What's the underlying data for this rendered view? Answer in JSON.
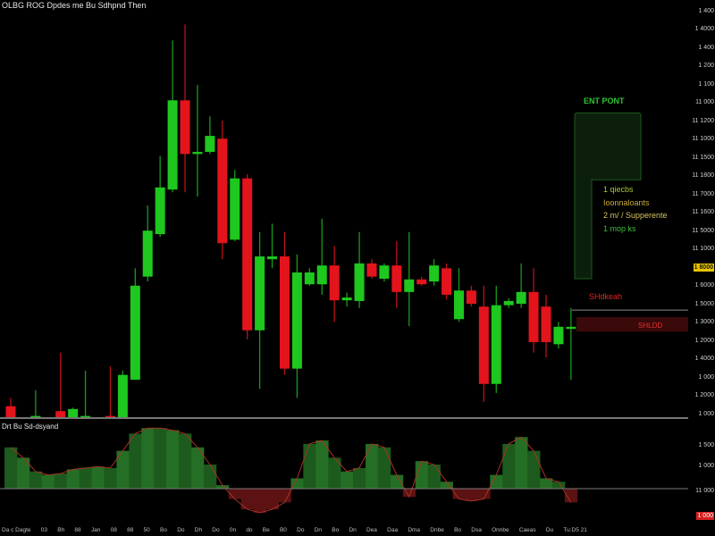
{
  "colors": {
    "up": "#1ec81e",
    "down": "#e3141c",
    "up_wick": "#1a9a1a",
    "down_wick": "#b81218",
    "ind_up": "#1d5a1d",
    "ind_up_alt": "#256e25",
    "ind_down": "#5c1212",
    "ind_line": "#a83224",
    "zone_fill": "#0c1f0c",
    "zone_stroke": "#1d5a1d",
    "stop_line": "#8a8a8a",
    "sell_zone_fill": "#3a0909",
    "tag_yellow": "#e8c400",
    "tag_red": "#d8201e"
  },
  "annotations": {
    "entry_label": "ENT PONT",
    "notes": [
      "1 qiecbs",
      "Ioonnaloants",
      "2 m/ / Supperente",
      "1 mop ks"
    ],
    "stop_label": "SHdkeah",
    "sell_label": "SHLDD"
  },
  "chart_data": {
    "type": "candlestick",
    "title": "OLBG ROG Dpdes me Bu Sdhpnd Then",
    "ylim": [
      1.0,
      1.6
    ],
    "candles": [
      {
        "x": 0,
        "open": 1.017,
        "high": 1.029,
        "low": 1.0,
        "close": 1.0
      },
      {
        "x": 2,
        "open": 1.0,
        "high": 1.04,
        "low": 1.0,
        "close": 1.003
      },
      {
        "x": 4,
        "open": 1.01,
        "high": 1.094,
        "low": 1.0,
        "close": 1.0
      },
      {
        "x": 5,
        "open": 1.0,
        "high": 1.015,
        "low": 1.0,
        "close": 1.013
      },
      {
        "x": 6,
        "open": 1.0,
        "high": 1.068,
        "low": 1.0,
        "close": 1.003
      },
      {
        "x": 8,
        "open": 1.003,
        "high": 1.074,
        "low": 1.0,
        "close": 1.0
      },
      {
        "x": 9,
        "open": 1.0,
        "high": 1.068,
        "low": 1.0,
        "close": 1.062
      },
      {
        "x": 10,
        "open": 1.055,
        "high": 1.215,
        "low": 1.055,
        "close": 1.19
      },
      {
        "x": 11,
        "open": 1.203,
        "high": 1.305,
        "low": 1.196,
        "close": 1.269
      },
      {
        "x": 12,
        "open": 1.264,
        "high": 1.376,
        "low": 1.26,
        "close": 1.331
      },
      {
        "x": 13,
        "open": 1.328,
        "high": 1.542,
        "low": 1.324,
        "close": 1.456
      },
      {
        "x": 14,
        "open": 1.456,
        "high": 1.565,
        "low": 1.324,
        "close": 1.379
      },
      {
        "x": 15,
        "open": 1.379,
        "high": 1.478,
        "low": 1.318,
        "close": 1.382
      },
      {
        "x": 16,
        "open": 1.382,
        "high": 1.433,
        "low": 1.379,
        "close": 1.405
      },
      {
        "x": 17,
        "open": 1.401,
        "high": 1.427,
        "low": 1.228,
        "close": 1.251
      },
      {
        "x": 18,
        "open": 1.256,
        "high": 1.356,
        "low": 1.254,
        "close": 1.344
      },
      {
        "x": 19,
        "open": 1.344,
        "high": 1.35,
        "low": 1.113,
        "close": 1.126
      },
      {
        "x": 20,
        "open": 1.126,
        "high": 1.267,
        "low": 1.042,
        "close": 1.232
      },
      {
        "x": 21,
        "open": 1.228,
        "high": 1.279,
        "low": 1.215,
        "close": 1.232
      },
      {
        "x": 22,
        "open": 1.232,
        "high": 1.267,
        "low": 1.062,
        "close": 1.071
      },
      {
        "x": 23,
        "open": 1.071,
        "high": 1.235,
        "low": 1.029,
        "close": 1.209
      },
      {
        "x": 24,
        "open": 1.192,
        "high": 1.215,
        "low": 1.19,
        "close": 1.209
      },
      {
        "x": 25,
        "open": 1.192,
        "high": 1.286,
        "low": 1.177,
        "close": 1.219
      },
      {
        "x": 26,
        "open": 1.219,
        "high": 1.247,
        "low": 1.138,
        "close": 1.169
      },
      {
        "x": 27,
        "open": 1.169,
        "high": 1.18,
        "low": 1.16,
        "close": 1.173
      },
      {
        "x": 28,
        "open": 1.168,
        "high": 1.267,
        "low": 1.158,
        "close": 1.222
      },
      {
        "x": 29,
        "open": 1.222,
        "high": 1.228,
        "low": 1.2,
        "close": 1.203
      },
      {
        "x": 30,
        "open": 1.2,
        "high": 1.222,
        "low": 1.196,
        "close": 1.219
      },
      {
        "x": 31,
        "open": 1.219,
        "high": 1.254,
        "low": 1.158,
        "close": 1.181
      },
      {
        "x": 32,
        "open": 1.181,
        "high": 1.267,
        "low": 1.132,
        "close": 1.199
      },
      {
        "x": 33,
        "open": 1.199,
        "high": 1.203,
        "low": 1.19,
        "close": 1.192
      },
      {
        "x": 34,
        "open": 1.196,
        "high": 1.228,
        "low": 1.19,
        "close": 1.219
      },
      {
        "x": 35,
        "open": 1.215,
        "high": 1.222,
        "low": 1.17,
        "close": 1.177
      },
      {
        "x": 36,
        "open": 1.142,
        "high": 1.215,
        "low": 1.138,
        "close": 1.183
      },
      {
        "x": 37,
        "open": 1.183,
        "high": 1.19,
        "low": 1.16,
        "close": 1.164
      },
      {
        "x": 38,
        "open": 1.16,
        "high": 1.19,
        "low": 1.023,
        "close": 1.049
      },
      {
        "x": 39,
        "open": 1.049,
        "high": 1.19,
        "low": 1.036,
        "close": 1.162
      },
      {
        "x": 40,
        "open": 1.162,
        "high": 1.172,
        "low": 1.158,
        "close": 1.168
      },
      {
        "x": 41,
        "open": 1.164,
        "high": 1.222,
        "low": 1.158,
        "close": 1.181
      },
      {
        "x": 42,
        "open": 1.181,
        "high": 1.215,
        "low": 1.094,
        "close": 1.109
      },
      {
        "x": 43,
        "open": 1.16,
        "high": 1.177,
        "low": 1.087,
        "close": 1.109
      },
      {
        "x": 44,
        "open": 1.106,
        "high": 1.138,
        "low": 1.1,
        "close": 1.131
      },
      {
        "x": 45,
        "open": 1.128,
        "high": 1.158,
        "low": 1.055,
        "close": 1.131
      }
    ],
    "levels": {
      "entry_zone": {
        "top": 1.438,
        "step": 1.342,
        "bottom": 1.2
      },
      "stop_level": 1.155,
      "sell_zone": {
        "top": 1.145,
        "bottom": 1.124
      }
    },
    "y_tick_labels": [
      {
        "text": "1 400",
        "style": "plain"
      },
      {
        "text": "1 4000",
        "style": "plain"
      },
      {
        "text": "1 400",
        "style": "plain"
      },
      {
        "text": "1 200",
        "style": "plain"
      },
      {
        "text": "1 100",
        "style": "plain"
      },
      {
        "text": "11 000",
        "style": "plain"
      },
      {
        "text": "11 1200",
        "style": "plain"
      },
      {
        "text": "11 1000",
        "style": "plain"
      },
      {
        "text": "11 1500",
        "style": "plain"
      },
      {
        "text": "11 1800",
        "style": "plain"
      },
      {
        "text": "11 7000",
        "style": "plain"
      },
      {
        "text": "11 1600",
        "style": "plain"
      },
      {
        "text": "11 5000",
        "style": "plain"
      },
      {
        "text": "11 1000",
        "style": "plain"
      },
      {
        "text": "1 8000",
        "style": "current-price"
      },
      {
        "text": "1 6000",
        "style": "plain"
      },
      {
        "text": "1 5000",
        "style": "plain"
      },
      {
        "text": "1 3000",
        "style": "plain"
      },
      {
        "text": "1 2000",
        "style": "plain"
      },
      {
        "text": "1 4000",
        "style": "plain"
      },
      {
        "text": "1 000",
        "style": "plain"
      },
      {
        "text": "1 2000",
        "style": "plain"
      },
      {
        "text": "1 000",
        "style": "plain"
      }
    ],
    "x_tick_labels": [
      "Da c Dagte",
      "03",
      "Bh",
      "88",
      "Jan",
      "08",
      "88",
      "50",
      "Bo",
      "Do",
      "Dh",
      "Do",
      "0n",
      "do",
      "Be",
      "B0",
      "Do",
      "Dn",
      "Bo",
      "Dn",
      "Dea",
      "Daa",
      "Dma",
      "Dnbe",
      "Bo",
      "Dsa",
      "Onnbe",
      "Caeas",
      "Du",
      "Tu:D5 21"
    ],
    "indicator": {
      "title": "Drt Bu Sd-dsyand",
      "type": "histogram",
      "ylim": [
        -50,
        100
      ],
      "values": [
        60,
        45,
        25,
        20,
        22,
        28,
        30,
        32,
        30,
        55,
        80,
        88,
        88,
        85,
        80,
        60,
        35,
        5,
        -15,
        -30,
        -35,
        -30,
        -20,
        15,
        65,
        70,
        45,
        25,
        30,
        65,
        60,
        20,
        -12,
        40,
        35,
        10,
        -15,
        -18,
        -15,
        20,
        65,
        75,
        55,
        15,
        10,
        -20
      ],
      "tick_labels": [
        {
          "text": "1 500",
          "style": "plain"
        },
        {
          "text": "1 000",
          "style": "plain"
        },
        {
          "text": "11 000",
          "style": "plain"
        },
        {
          "text": "1 000",
          "style": "current-value"
        }
      ]
    }
  }
}
